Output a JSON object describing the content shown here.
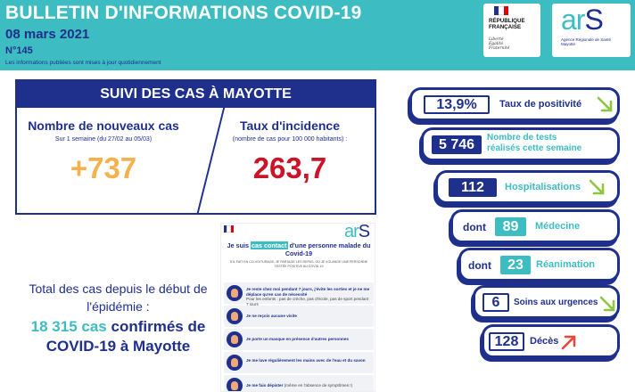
{
  "header": {
    "title": "BULLETIN D'INFORMATIONS COVID-19",
    "date": "08 mars 2021",
    "number": "N°145",
    "note": "Les informations publiées sont mises à jour quotidiennement",
    "colors": {
      "teal": "#3dbdc2",
      "navy": "#1f2f8c"
    }
  },
  "logos": {
    "republique": {
      "name": "RÉPUBLIQUE\nFRANÇAISE",
      "motto": "Liberté\nÉgalité\nFraternité"
    },
    "ars": {
      "word_a": "ar",
      "word_b": "S",
      "subtitle": "Agence Régionale de Santé\nMayotte"
    }
  },
  "suivi": {
    "heading": "SUIVI DES CAS À MAYOTTE",
    "new_cases": {
      "title": "Nombre de nouveaux cas",
      "subtitle": "Sur 1 semaine (du 27/02 au 05/03)",
      "value": "+737",
      "color": "#f6b14f"
    },
    "incidence": {
      "title": "Taux d'incidence",
      "subtitle": "(nombre de cas pour 100 000 habitants) :",
      "value": "263,7",
      "color": "#cc1428"
    }
  },
  "total": {
    "line1": "Total des cas depuis le début de",
    "line2": "l'épidémie :",
    "count": "18 315 cas",
    "confirmed": "confirmés de",
    "line4": "COVID-19 à Mayotte"
  },
  "poster": {
    "ars_a": "ar",
    "ars_b": "S",
    "title_pre": "Je suis",
    "title_highlight": "cas contact",
    "title_post": "d'une personne malade du Covid-19",
    "small_text": "S'IL FAIT EN CO-VOITURAGE, JE PARTAGE LES REPAS, OU JE VOLANGE UNE PERSONNE TESTÉE POSITIVE AU COVID-19",
    "items": [
      {
        "text": "Je reste chez moi pendant 7 jours, j'évite les sorties et je ne me déplace qu'en cas de nécessité",
        "sub": "Pour les enfants : pas de crèche, pas d'école, pas de sport pendant 7 jours"
      },
      {
        "text": "Je ne reçois aucune visite",
        "sub": ""
      },
      {
        "text": "Je porte un masque en présence d'autres personnes",
        "sub": ""
      },
      {
        "text": "Je me lave régulièrement les mains avec de l'eau et du savon",
        "sub": ""
      },
      {
        "text": "Je me fais dépister",
        "sub": "(même en l'absence de symptômes !)"
      }
    ]
  },
  "indicators": [
    {
      "value": "13,9%",
      "label": "Taux de positivité",
      "trend": "down",
      "trend_color": "#8dc63f"
    },
    {
      "value": "5 746",
      "label": "Nombre de tests réalisés cette semaine",
      "trend": "none"
    },
    {
      "value": "112",
      "label": "Hospitalisations",
      "trend": "down",
      "trend_color": "#8dc63f"
    },
    {
      "prefix": "dont",
      "value": "89",
      "label": "Médecine",
      "trend": "none"
    },
    {
      "prefix": "dont",
      "value": "23",
      "label": "Réanimation",
      "trend": "none"
    },
    {
      "value": "6",
      "label": "Soins aux urgences",
      "trend": "down",
      "trend_color": "#8dc63f"
    },
    {
      "value": "128",
      "label": "Décès",
      "trend": "up",
      "trend_color": "#e8473c"
    }
  ]
}
